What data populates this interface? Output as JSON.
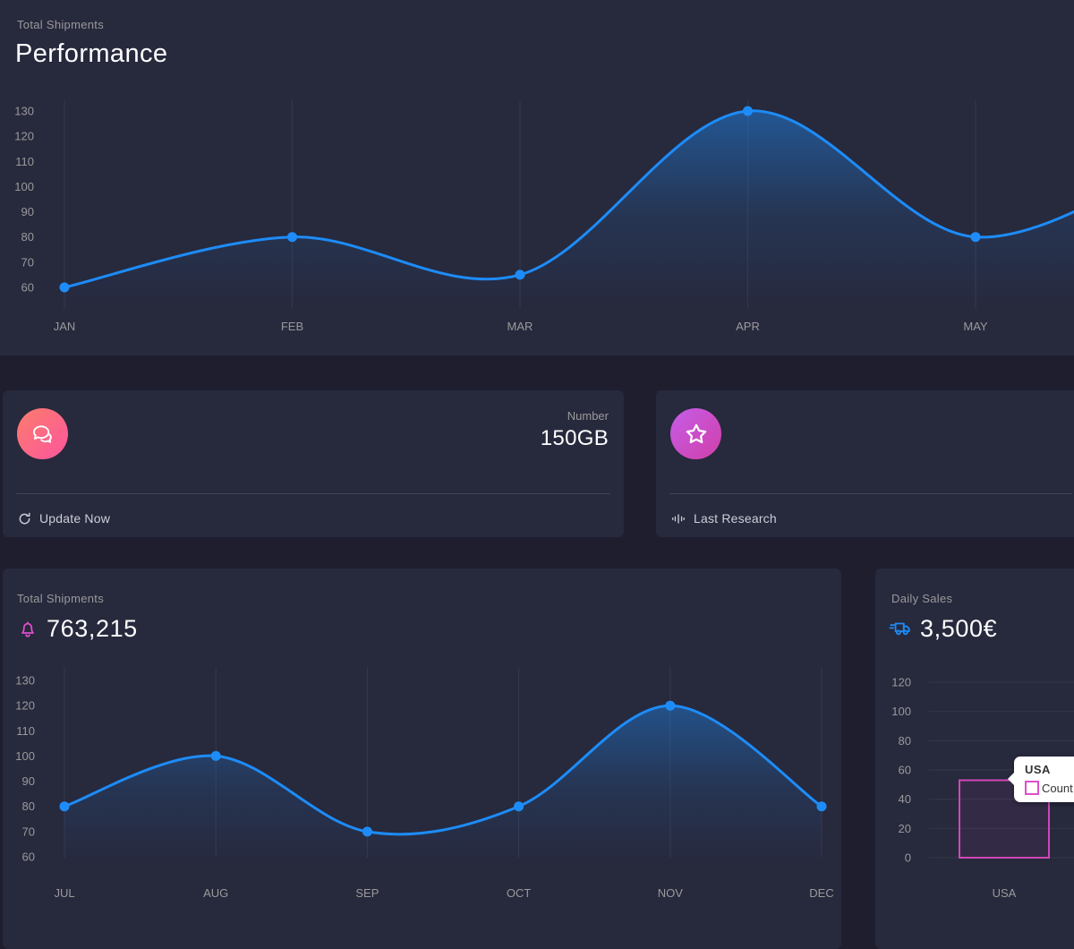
{
  "colors": {
    "background": "#1e1e2f",
    "card": "#27293d",
    "accent_blue": "#1d8cf8",
    "accent_pink": "#d048b6",
    "muted_text": "#9a9a9a",
    "white": "#ffffff"
  },
  "performance_card": {
    "label": "Total Shipments",
    "title": "Performance",
    "chart_data": {
      "type": "line",
      "categories": [
        "JAN",
        "FEB",
        "MAR",
        "APR",
        "MAY"
      ],
      "values": [
        60,
        80,
        65,
        130,
        80
      ],
      "y_ticks": [
        130,
        120,
        110,
        100,
        90,
        80,
        70,
        60
      ],
      "ylim": [
        60,
        130
      ],
      "line_color": "#1d8cf8",
      "area_fill": "blue gradient fading down",
      "grid": "vertical lines at each month",
      "note": "line continues rising past MAY beyond right edge of view"
    }
  },
  "stat_cards": [
    {
      "icon": "chat-bubbles-icon",
      "category_label": "Number",
      "value": "150GB",
      "footer_icon": "refresh-icon",
      "footer_label": "Update Now"
    },
    {
      "icon": "star-icon",
      "footer_icon": "pulse-icon",
      "footer_label": "Last Research"
    }
  ],
  "shipments_card": {
    "label": "Total Shipments",
    "value": "763,215",
    "icon": "bell-icon",
    "chart_data": {
      "type": "line",
      "categories": [
        "JUL",
        "AUG",
        "SEP",
        "OCT",
        "NOV",
        "DEC"
      ],
      "values": [
        80,
        100,
        70,
        80,
        120,
        80
      ],
      "y_ticks": [
        130,
        120,
        110,
        100,
        90,
        80,
        70,
        60
      ],
      "ylim": [
        60,
        130
      ],
      "line_color": "#1d8cf8",
      "area_fill": "blue gradient fading down",
      "grid": "vertical lines at each month"
    }
  },
  "sales_card": {
    "label": "Daily Sales",
    "value": "3,500€",
    "icon": "delivery-truck-icon",
    "chart_data": {
      "type": "bar",
      "categories": [
        "USA"
      ],
      "values": [
        53
      ],
      "y_ticks": [
        120,
        100,
        80,
        60,
        40,
        20,
        0
      ],
      "ylim": [
        0,
        120
      ],
      "bar_color": "#d048b6",
      "grid": "horizontal gridlines",
      "tooltip": {
        "title": "USA",
        "text": "Count"
      }
    }
  }
}
